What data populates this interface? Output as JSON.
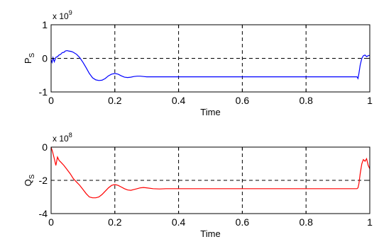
{
  "chart_data": [
    {
      "type": "line",
      "ylabel": "P",
      "ylabel_sub": "S",
      "xlabel": "Time",
      "exponent_prefix": "x 10",
      "exponent_power": "9",
      "xlim": [
        0,
        1
      ],
      "ylim": [
        -1,
        1
      ],
      "xticks": [
        0,
        0.2,
        0.4,
        0.6,
        0.8,
        1
      ],
      "xtick_labels": [
        "0",
        "0.2",
        "0.4",
        "0.6",
        "0.8",
        "1"
      ],
      "yticks": [
        -1,
        0,
        1
      ],
      "ytick_labels": [
        "-1",
        "0",
        "1"
      ],
      "grid": true,
      "series": [
        {
          "color": "#0000ff",
          "x": [
            0,
            0.003,
            0.006,
            0.01,
            0.015,
            0.02,
            0.025,
            0.03,
            0.035,
            0.04,
            0.045,
            0.05,
            0.055,
            0.06,
            0.065,
            0.07,
            0.08,
            0.09,
            0.1,
            0.11,
            0.12,
            0.13,
            0.14,
            0.15,
            0.16,
            0.17,
            0.18,
            0.19,
            0.2,
            0.21,
            0.22,
            0.23,
            0.24,
            0.25,
            0.26,
            0.27,
            0.28,
            0.29,
            0.3,
            0.31,
            0.32,
            0.33,
            0.35,
            0.4,
            0.5,
            0.6,
            0.7,
            0.8,
            0.9,
            0.95,
            0.96,
            0.963,
            0.966,
            0.97,
            0.975,
            0.98,
            0.985,
            0.99,
            0.995,
            1.0
          ],
          "y": [
            -0.05,
            -0.12,
            0.02,
            -0.1,
            0.03,
            0.05,
            0.1,
            0.12,
            0.17,
            0.18,
            0.22,
            0.23,
            0.22,
            0.21,
            0.2,
            0.18,
            0.12,
            0.02,
            -0.12,
            -0.28,
            -0.45,
            -0.58,
            -0.64,
            -0.66,
            -0.65,
            -0.6,
            -0.52,
            -0.47,
            -0.45,
            -0.47,
            -0.52,
            -0.56,
            -0.57,
            -0.56,
            -0.54,
            -0.53,
            -0.53,
            -0.54,
            -0.55,
            -0.55,
            -0.55,
            -0.55,
            -0.55,
            -0.55,
            -0.55,
            -0.55,
            -0.55,
            -0.55,
            -0.55,
            -0.55,
            -0.55,
            -0.6,
            -0.45,
            -0.2,
            0.0,
            0.08,
            0.1,
            0.05,
            0.08,
            0.09
          ]
        }
      ]
    },
    {
      "type": "line",
      "ylabel": "Q",
      "ylabel_sub": "S",
      "xlabel": "Time",
      "exponent_prefix": "x 10",
      "exponent_power": "8",
      "xlim": [
        0,
        1
      ],
      "ylim": [
        -4,
        0
      ],
      "xticks": [
        0,
        0.2,
        0.4,
        0.6,
        0.8,
        1
      ],
      "xtick_labels": [
        "0",
        "0.2",
        "0.4",
        "0.6",
        "0.8",
        "1"
      ],
      "yticks": [
        -4,
        -2,
        0
      ],
      "ytick_labels": [
        "-4",
        "-2",
        "0"
      ],
      "grid": true,
      "series": [
        {
          "color": "#ff0000",
          "x": [
            0,
            0.005,
            0.01,
            0.015,
            0.02,
            0.025,
            0.03,
            0.04,
            0.05,
            0.06,
            0.07,
            0.08,
            0.09,
            0.1,
            0.11,
            0.12,
            0.13,
            0.14,
            0.15,
            0.16,
            0.17,
            0.18,
            0.19,
            0.2,
            0.21,
            0.22,
            0.23,
            0.24,
            0.25,
            0.26,
            0.27,
            0.28,
            0.29,
            0.3,
            0.32,
            0.34,
            0.36,
            0.38,
            0.4,
            0.5,
            0.6,
            0.7,
            0.8,
            0.9,
            0.95,
            0.96,
            0.963,
            0.966,
            0.97,
            0.975,
            0.98,
            0.985,
            0.99,
            0.995,
            1.0
          ],
          "y": [
            0.0,
            -0.3,
            -0.7,
            -1.1,
            -0.6,
            -0.8,
            -0.9,
            -1.1,
            -1.35,
            -1.6,
            -1.9,
            -2.1,
            -2.3,
            -2.55,
            -2.8,
            -3.0,
            -3.05,
            -3.05,
            -3.0,
            -2.85,
            -2.65,
            -2.45,
            -2.3,
            -2.25,
            -2.3,
            -2.4,
            -2.5,
            -2.58,
            -2.6,
            -2.55,
            -2.5,
            -2.45,
            -2.43,
            -2.45,
            -2.5,
            -2.52,
            -2.5,
            -2.5,
            -2.5,
            -2.5,
            -2.5,
            -2.5,
            -2.5,
            -2.5,
            -2.5,
            -2.5,
            -2.45,
            -2.2,
            -1.6,
            -1.0,
            -0.75,
            -0.85,
            -0.7,
            -1.1,
            -1.3
          ]
        }
      ]
    }
  ]
}
